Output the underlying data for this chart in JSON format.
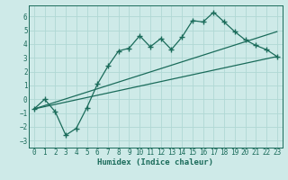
{
  "xlabel": "Humidex (Indice chaleur)",
  "bg_color": "#ceeae8",
  "line_color": "#1a6b5a",
  "grid_color": "#b0d8d4",
  "xlim": [
    -0.5,
    23.5
  ],
  "ylim": [
    -3.5,
    6.8
  ],
  "xticks": [
    0,
    1,
    2,
    3,
    4,
    5,
    6,
    7,
    8,
    9,
    10,
    11,
    12,
    13,
    14,
    15,
    16,
    17,
    18,
    19,
    20,
    21,
    22,
    23
  ],
  "yticks": [
    -3,
    -2,
    -1,
    0,
    1,
    2,
    3,
    4,
    5,
    6
  ],
  "main_x": [
    0,
    1,
    2,
    3,
    4,
    5,
    6,
    7,
    8,
    9,
    10,
    11,
    12,
    13,
    14,
    15,
    16,
    17,
    18,
    19,
    20,
    21,
    22,
    23
  ],
  "main_y": [
    -0.7,
    0.0,
    -0.9,
    -2.6,
    -2.1,
    -0.6,
    1.1,
    2.4,
    3.5,
    3.7,
    4.6,
    3.8,
    4.4,
    3.6,
    4.5,
    5.7,
    5.6,
    6.3,
    5.6,
    4.9,
    4.3,
    3.9,
    3.6,
    3.1
  ],
  "line1_x": [
    0,
    23
  ],
  "line1_y": [
    -0.7,
    3.1
  ],
  "line2_x": [
    0,
    23
  ],
  "line2_y": [
    -0.7,
    4.9
  ],
  "marker": "+",
  "marker_size": 4.5,
  "line_width": 0.9,
  "tick_fontsize": 5.5,
  "xlabel_fontsize": 6.5
}
